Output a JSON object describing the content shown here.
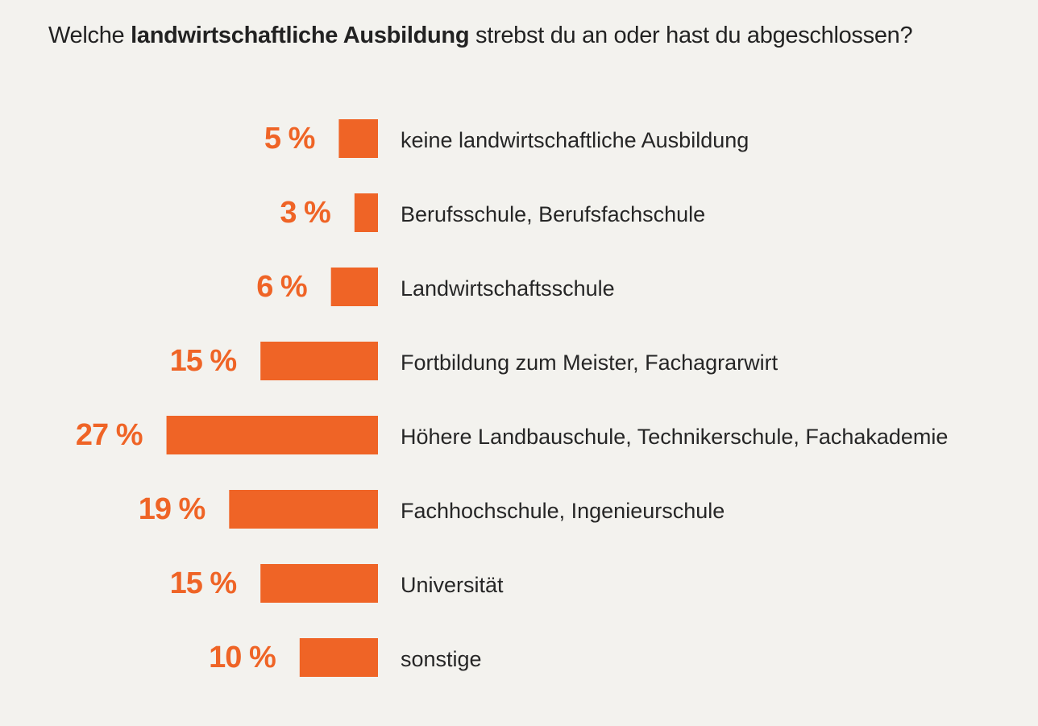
{
  "title": {
    "before": "Welche ",
    "bold": "landwirtschaftliche Ausbildung",
    "after": " strebst du an oder hast du abgeschlossen?"
  },
  "colors": {
    "bar": "#ef6426",
    "background": "#f3f2ee"
  },
  "chart_data": {
    "type": "bar",
    "orientation": "horizontal",
    "title": "Welche landwirtschaftliche Ausbildung strebst du an oder hast du abgeschlossen?",
    "unit": "%",
    "categories": [
      "keine landwirtschaftliche Ausbildung",
      "Berufsschule, Berufsfachschule",
      "Landwirtschaftsschule",
      "Fortbildung zum Meister, Fachagrarwirt",
      "Höhere Landbauschule, Technikerschule, Fachakademie",
      "Fachhochschule, Ingenieurschule",
      "Universität",
      "sonstige"
    ],
    "values": [
      5,
      3,
      6,
      15,
      27,
      19,
      15,
      10
    ],
    "value_labels": [
      "5 %",
      "3 %",
      "6 %",
      "15 %",
      "27 %",
      "19 %",
      "15 %",
      "10 %"
    ]
  }
}
